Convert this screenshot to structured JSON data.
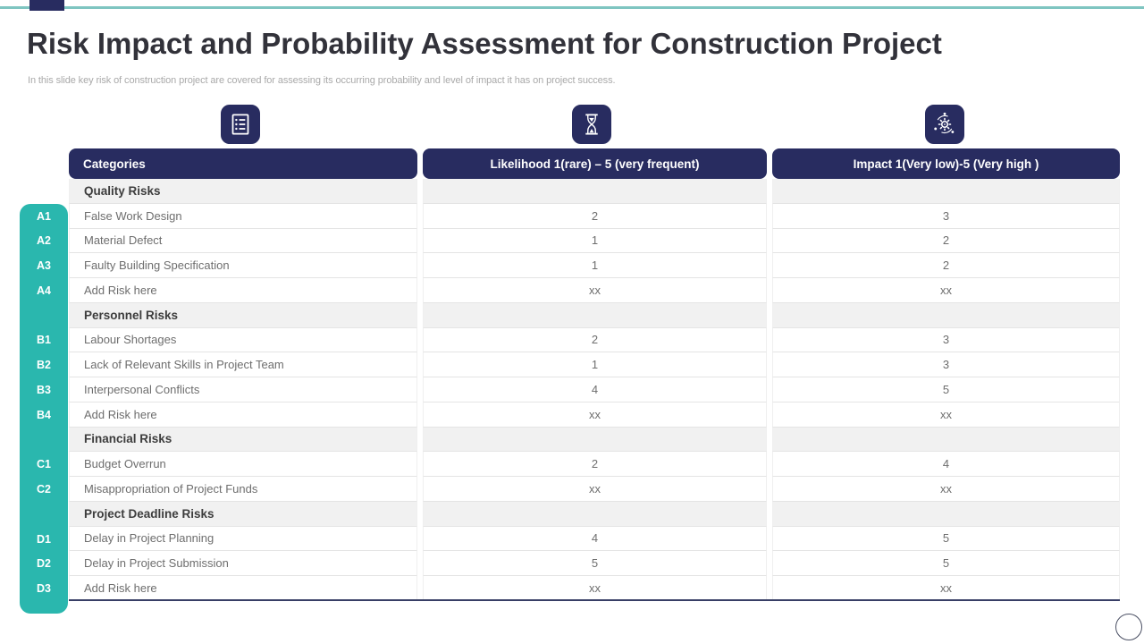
{
  "slide": {
    "title": "Risk Impact and Probability Assessment for Construction Project",
    "subtitle": "In this slide key risk of construction project are covered for assessing its occurring probability and level of impact it has on project success."
  },
  "table": {
    "columns": [
      {
        "label": "Categories",
        "icon": "list-icon",
        "align": "left"
      },
      {
        "label": "Likelihood 1(rare) – 5 (very frequent)",
        "icon": "hourglass-icon",
        "align": "center"
      },
      {
        "label": "Impact 1(Very low)-5 (Very high )",
        "icon": "orbit-gear-icon",
        "align": "center"
      }
    ],
    "sections": [
      {
        "name": "Quality Risks",
        "rows": [
          {
            "id": "A1",
            "risk": "False Work Design",
            "likelihood": "2",
            "impact": "3"
          },
          {
            "id": "A2",
            "risk": "Material Defect",
            "likelihood": "1",
            "impact": "2"
          },
          {
            "id": "A3",
            "risk": "Faulty Building Specification",
            "likelihood": "1",
            "impact": "2"
          },
          {
            "id": "A4",
            "risk": "Add Risk here",
            "likelihood": "xx",
            "impact": "xx"
          }
        ]
      },
      {
        "name": "Personnel Risks",
        "rows": [
          {
            "id": "B1",
            "risk": "Labour Shortages",
            "likelihood": "2",
            "impact": "3"
          },
          {
            "id": "B2",
            "risk": "Lack of Relevant Skills in Project Team",
            "likelihood": "1",
            "impact": "3"
          },
          {
            "id": "B3",
            "risk": "Interpersonal Conflicts",
            "likelihood": "4",
            "impact": "5"
          },
          {
            "id": "B4",
            "risk": "Add Risk here",
            "likelihood": "xx",
            "impact": "xx"
          }
        ]
      },
      {
        "name": "Financial Risks",
        "rows": [
          {
            "id": "C1",
            "risk": "Budget Overrun",
            "likelihood": "2",
            "impact": "4"
          },
          {
            "id": "C2",
            "risk": "Misappropriation of Project Funds",
            "likelihood": "xx",
            "impact": "xx"
          }
        ]
      },
      {
        "name": "Project Deadline Risks",
        "rows": [
          {
            "id": "D1",
            "risk": "Delay in Project Planning",
            "likelihood": "4",
            "impact": "5"
          },
          {
            "id": "D2",
            "risk": "Delay in Project Submission",
            "likelihood": "5",
            "impact": "5"
          },
          {
            "id": "D3",
            "risk": "Add Risk here",
            "likelihood": "xx",
            "impact": "xx"
          }
        ]
      }
    ]
  },
  "colors": {
    "navy": "#282c60",
    "teal": "#2ab7ae",
    "topline_teal": "#7fc5c1",
    "section_bg": "#f1f1f1",
    "row_border": "#e4e4e4",
    "text_gray": "#6e6e6e",
    "title_color": "#32323a",
    "subtitle_color": "#a9a9a9",
    "table_bottom_line": "#383e66"
  }
}
